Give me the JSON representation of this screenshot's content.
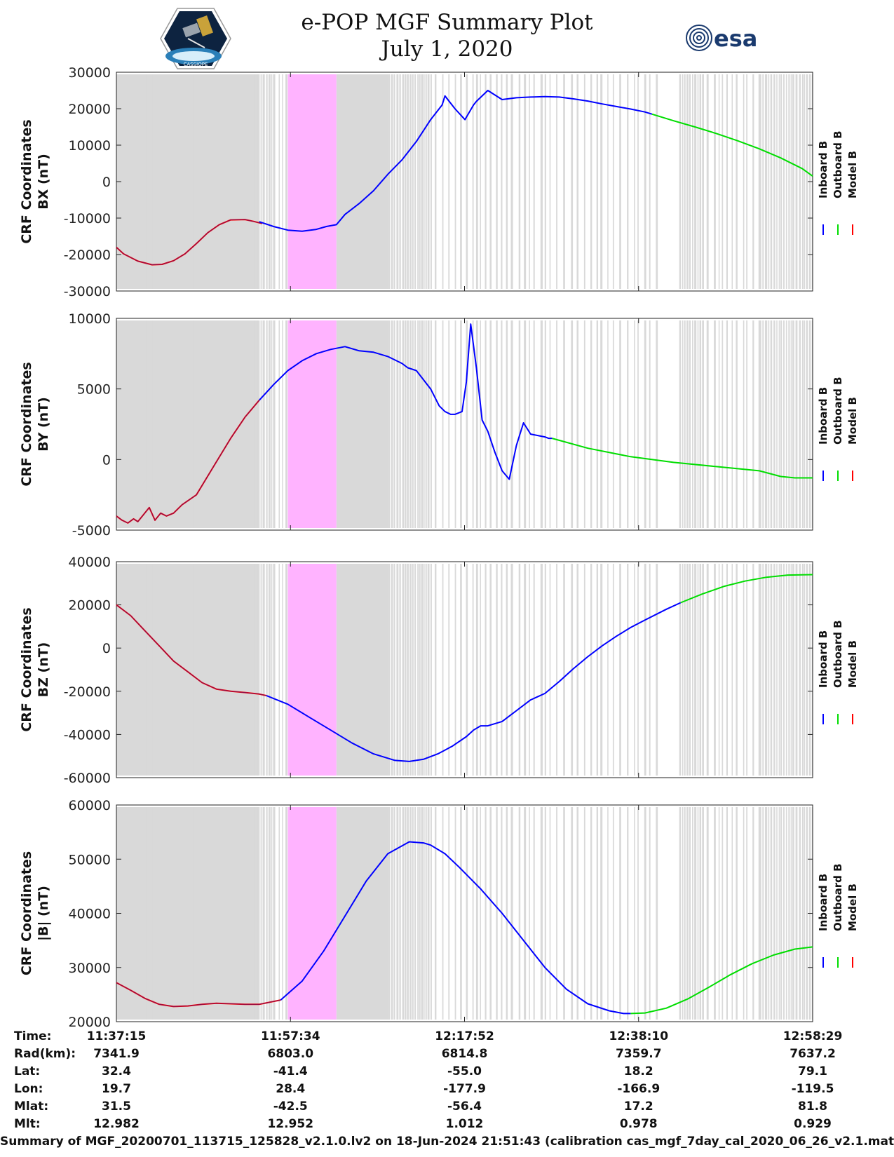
{
  "header": {
    "title": "e-POP MGF Summary Plot",
    "date": "July 1, 2020",
    "logo_left_icon": "cassiope-satellite-logo",
    "logo_right_text": "esa"
  },
  "legend": {
    "entries": [
      {
        "name": "Inboard B",
        "color": "#0000ff"
      },
      {
        "name": "Outboard B",
        "color": "#00dd00"
      },
      {
        "name": "Model B",
        "color": "#ff0000"
      }
    ]
  },
  "time_axis": {
    "tick_labels": [
      "11:37:15",
      "11:57:34",
      "12:17:52",
      "12:38:10",
      "12:58:29"
    ],
    "range_s": [
      0,
      4874
    ]
  },
  "shading": {
    "gray_color": "#d9d9d9",
    "pink_color": "#ffb3ff",
    "gray_solid_s": [
      [
        0,
        1000
      ],
      [
        1540,
        1900
      ]
    ],
    "gray_dense_s": [
      [
        210,
        330
      ],
      [
        900,
        1100
      ],
      [
        1900,
        2200
      ],
      [
        3940,
        4100
      ],
      [
        4500,
        4874
      ]
    ],
    "gray_sparse_s": [
      [
        430,
        900
      ],
      [
        1100,
        1430
      ],
      [
        2200,
        3800
      ],
      [
        4100,
        4500
      ]
    ],
    "pink_s": [
      1200,
      1540
    ]
  },
  "chart_data": [
    {
      "type": "line",
      "panel": "BX",
      "ylabel_line1": "CRF Coordinates",
      "ylabel_line2": "BX (nT)",
      "ylim": [
        -30000,
        30000
      ],
      "yticks": [
        "30000",
        "20000",
        "10000",
        "0",
        "-10000",
        "-20000",
        "-30000"
      ],
      "ytick_values": [
        30000,
        20000,
        10000,
        0,
        -10000,
        -20000,
        -30000
      ],
      "series": [
        {
          "name": "Model B",
          "x": [
            0,
            50,
            150,
            250,
            320,
            400,
            480,
            560,
            640,
            720,
            800,
            900,
            960,
            1020
          ],
          "values": [
            -18000,
            -19800,
            -21800,
            -22800,
            -22700,
            -21700,
            -19800,
            -17000,
            -14000,
            -11800,
            -10500,
            -10400,
            -10900,
            -11500
          ]
        },
        {
          "name": "Inboard B",
          "x": [
            1000,
            1100,
            1200,
            1300,
            1400,
            1470,
            1540,
            1600,
            1700,
            1800,
            1900,
            2000,
            2100,
            2200,
            2280,
            2300,
            2370,
            2440,
            2500,
            2520,
            2600,
            2700,
            2800,
            2900,
            3000,
            3100,
            3200,
            3300,
            3400,
            3500,
            3600,
            3700,
            3750
          ],
          "values": [
            -11000,
            -12300,
            -13300,
            -13600,
            -13100,
            -12300,
            -11800,
            -9000,
            -6000,
            -2500,
            2000,
            6000,
            11000,
            17000,
            21000,
            23500,
            20000,
            17000,
            21000,
            22000,
            25000,
            22500,
            23000,
            23200,
            23300,
            23200,
            22700,
            22100,
            21300,
            20600,
            19900,
            19100,
            18500
          ]
        },
        {
          "name": "Outboard B",
          "x": [
            3750,
            3900,
            4050,
            4200,
            4350,
            4500,
            4650,
            4800,
            4874
          ],
          "values": [
            18500,
            16700,
            15000,
            13200,
            11200,
            9000,
            6500,
            3600,
            1500
          ]
        }
      ]
    },
    {
      "type": "line",
      "panel": "BY",
      "ylabel_line1": "CRF Coordinates",
      "ylabel_line2": "BY (nT)",
      "ylim": [
        -5000,
        10000
      ],
      "yticks": [
        "10000",
        "5000",
        "0",
        "-5000"
      ],
      "ytick_values": [
        10000,
        5000,
        0,
        -5000
      ],
      "series": [
        {
          "name": "Model B",
          "x": [
            0,
            40,
            80,
            120,
            150,
            190,
            230,
            270,
            310,
            350,
            400,
            460,
            560,
            680,
            800,
            900,
            1000
          ],
          "values": [
            -4000,
            -4300,
            -4500,
            -4200,
            -4400,
            -3900,
            -3400,
            -4300,
            -3800,
            -4000,
            -3800,
            -3200,
            -2500,
            -500,
            1500,
            3000,
            4200
          ]
        },
        {
          "name": "Inboard B",
          "x": [
            1000,
            1100,
            1200,
            1300,
            1400,
            1500,
            1600,
            1700,
            1800,
            1900,
            2000,
            2040,
            2100,
            2200,
            2260,
            2300,
            2340,
            2370,
            2420,
            2450,
            2480,
            2520,
            2560,
            2600,
            2650,
            2700,
            2750,
            2800,
            2850,
            2900,
            2950,
            3000,
            3025,
            3050
          ],
          "values": [
            4200,
            5300,
            6300,
            7000,
            7500,
            7800,
            8000,
            7700,
            7600,
            7300,
            6800,
            6500,
            6300,
            5000,
            3800,
            3400,
            3200,
            3200,
            3400,
            5500,
            9600,
            6500,
            2800,
            2000,
            500,
            -800,
            -1400,
            1000,
            2600,
            1800,
            1700,
            1600,
            1500,
            1500
          ]
        },
        {
          "name": "Outboard B",
          "x": [
            3050,
            3300,
            3600,
            3900,
            4200,
            4500,
            4650,
            4750,
            4874
          ],
          "values": [
            1500,
            800,
            200,
            -200,
            -500,
            -800,
            -1200,
            -1300,
            -1300
          ]
        }
      ]
    },
    {
      "type": "line",
      "panel": "BZ",
      "ylabel_line1": "CRF Coordinates",
      "ylabel_line2": "BZ (nT)",
      "ylim": [
        -60000,
        40000
      ],
      "yticks": [
        "40000",
        "20000",
        "0",
        "-20000",
        "-40000",
        "-60000"
      ],
      "ytick_values": [
        40000,
        20000,
        0,
        -20000,
        -40000,
        -60000
      ],
      "series": [
        {
          "name": "Model B",
          "x": [
            0,
            100,
            200,
            300,
            400,
            500,
            600,
            700,
            800,
            900,
            1000,
            1050
          ],
          "values": [
            20000,
            15000,
            8000,
            1000,
            -6000,
            -11000,
            -16000,
            -19000,
            -20000,
            -20600,
            -21300,
            -22000
          ]
        },
        {
          "name": "Inboard B",
          "x": [
            1050,
            1200,
            1350,
            1500,
            1650,
            1800,
            1950,
            2050,
            2150,
            2250,
            2350,
            2450,
            2500,
            2550,
            2600,
            2700,
            2800,
            2900,
            3000,
            3100,
            3200,
            3300,
            3400,
            3500,
            3600,
            3700,
            3850,
            3950
          ],
          "values": [
            -22000,
            -26000,
            -32000,
            -38000,
            -44000,
            -49000,
            -52000,
            -52500,
            -51500,
            -49000,
            -45500,
            -41000,
            -38000,
            -36000,
            -36000,
            -34000,
            -29000,
            -24000,
            -21000,
            -15500,
            -9500,
            -4000,
            1000,
            5500,
            9500,
            13000,
            18000,
            21000
          ]
        },
        {
          "name": "Outboard B",
          "x": [
            3950,
            4100,
            4250,
            4400,
            4550,
            4700,
            4874
          ],
          "values": [
            21000,
            25000,
            28500,
            31000,
            32800,
            33800,
            34000
          ]
        }
      ]
    },
    {
      "type": "line",
      "panel": "|B|",
      "ylabel_line1": "CRF Coordinates",
      "ylabel_line2": "|B| (nT)",
      "ylim": [
        20000,
        60000
      ],
      "yticks": [
        "60000",
        "50000",
        "40000",
        "30000",
        "20000"
      ],
      "ytick_values": [
        60000,
        50000,
        40000,
        30000,
        20000
      ],
      "series": [
        {
          "name": "Model B",
          "x": [
            0,
            100,
            200,
            300,
            400,
            500,
            600,
            700,
            800,
            900,
            1000,
            1150
          ],
          "values": [
            27200,
            25800,
            24300,
            23200,
            22800,
            22900,
            23200,
            23400,
            23300,
            23200,
            23200,
            24000
          ]
        },
        {
          "name": "Inboard B",
          "x": [
            1150,
            1300,
            1450,
            1600,
            1750,
            1900,
            2050,
            2150,
            2200,
            2300,
            2400,
            2550,
            2700,
            2850,
            3000,
            3150,
            3300,
            3450,
            3550,
            3600
          ],
          "values": [
            24000,
            27500,
            33000,
            39500,
            46000,
            51000,
            53200,
            53000,
            52600,
            51000,
            48500,
            44500,
            40000,
            35000,
            30000,
            26000,
            23300,
            22000,
            21500,
            21500
          ]
        },
        {
          "name": "Outboard B",
          "x": [
            3600,
            3700,
            3850,
            4000,
            4150,
            4300,
            4450,
            4600,
            4750,
            4874
          ],
          "values": [
            21500,
            21600,
            22500,
            24200,
            26400,
            28700,
            30700,
            32300,
            33400,
            33800
          ]
        }
      ]
    }
  ],
  "orbit_table": {
    "rows": [
      {
        "label": "Time:",
        "values": [
          "11:37:15",
          "11:57:34",
          "12:17:52",
          "12:38:10",
          "12:58:29"
        ]
      },
      {
        "label": "Rad(km):",
        "values": [
          "7341.9",
          "6803.0",
          "6814.8",
          "7359.7",
          "7637.2"
        ]
      },
      {
        "label": "Lat:",
        "values": [
          "32.4",
          "-41.4",
          "-55.0",
          "18.2",
          "79.1"
        ]
      },
      {
        "label": "Lon:",
        "values": [
          "19.7",
          "28.4",
          "-177.9",
          "-166.9",
          "-119.5"
        ]
      },
      {
        "label": "Mlat:",
        "values": [
          "31.5",
          "-42.5",
          "-56.4",
          "17.2",
          "81.8"
        ]
      },
      {
        "label": "Mlt:",
        "values": [
          "12.982",
          "12.952",
          "1.012",
          "0.978",
          "0.929"
        ]
      }
    ]
  },
  "footer": "Summary of MGF_20200701_113715_125828_v2.1.0.lv2 on 18-Jun-2024 21:51:43 (calibration cas_mgf_7day_cal_2020_06_26_v2.1.mat )"
}
